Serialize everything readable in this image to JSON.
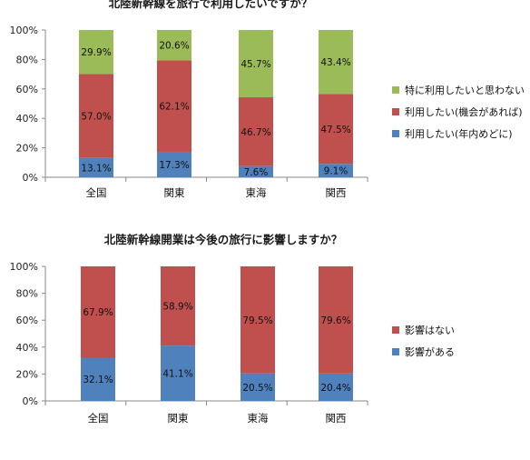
{
  "chart_data": [
    {
      "type": "bar",
      "stacked": true,
      "percent": true,
      "title": "北陸新幹線を旅行で利用したいですか？",
      "categories": [
        "全国",
        "関東",
        "東海",
        "関西"
      ],
      "series": [
        {
          "name": "利用したい(年内めどに)",
          "values": [
            13.1,
            17.3,
            7.6,
            9.1
          ],
          "labels": [
            "13.1%",
            "17.3%",
            "7.6%",
            "9.1%"
          ],
          "color": "#4f81bd"
        },
        {
          "name": "利用したい(機会があれば)",
          "values": [
            57.0,
            62.1,
            46.7,
            47.5
          ],
          "labels": [
            "57.0%",
            "62.1%",
            "46.7%",
            "47.5%"
          ],
          "color": "#c0504d"
        },
        {
          "name": "特に利用したいと思わない",
          "values": [
            29.9,
            20.6,
            45.7,
            43.4
          ],
          "labels": [
            "29.9%",
            "20.6%",
            "45.7%",
            "43.4%"
          ],
          "color": "#9bbb59"
        }
      ],
      "yticks": [
        "0%",
        "20%",
        "40%",
        "60%",
        "80%",
        "100%"
      ],
      "ylim": [
        0,
        100
      ],
      "legend": "right",
      "grid": false
    },
    {
      "type": "bar",
      "stacked": true,
      "percent": true,
      "title": "北陸新幹線開業は今後の旅行に影響しますか？",
      "categories": [
        "全国",
        "関東",
        "東海",
        "関西"
      ],
      "series": [
        {
          "name": "影響がある",
          "values": [
            32.1,
            41.1,
            20.5,
            20.4
          ],
          "labels": [
            "32.1%",
            "41.1%",
            "20.5%",
            "20.4%"
          ],
          "color": "#4f81bd"
        },
        {
          "name": "影響はない",
          "values": [
            67.9,
            58.9,
            79.5,
            79.6
          ],
          "labels": [
            "67.9%",
            "58.9%",
            "79.5%",
            "79.6%"
          ],
          "color": "#c0504d"
        }
      ],
      "yticks": [
        "0%",
        "20%",
        "40%",
        "60%",
        "80%",
        "100%"
      ],
      "ylim": [
        0,
        100
      ],
      "legend": "right",
      "grid": false
    }
  ]
}
